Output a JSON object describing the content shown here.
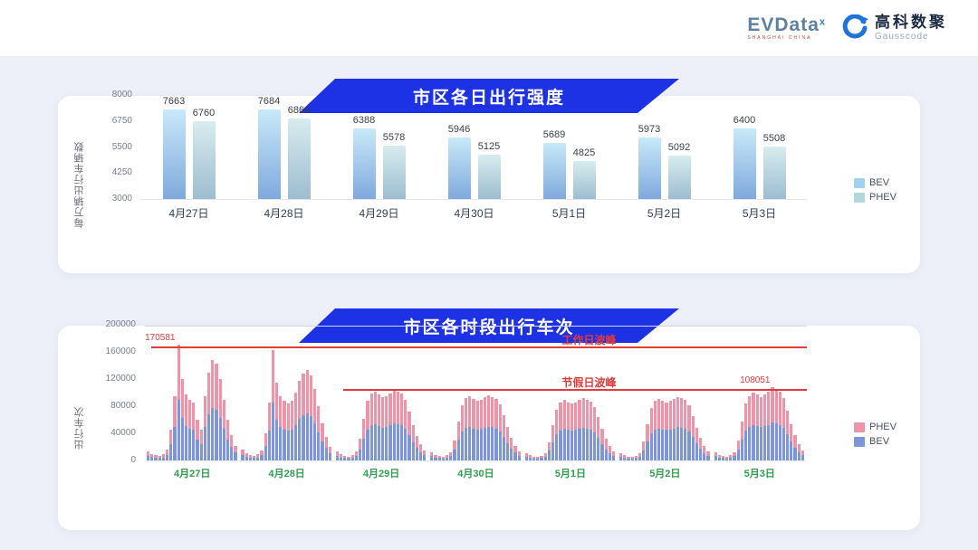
{
  "header": {
    "evdata": {
      "name": "EVData",
      "sup": "x",
      "subtext": "SHANGHAI CHINA"
    },
    "gausscode": {
      "cn": "高科数聚",
      "en": "Gausscode"
    }
  },
  "theme": {
    "ribbon_blue": "#1d32e4",
    "background": "#edf0f8",
    "annotation_red": "#e23b3b",
    "date_green": "#2f9e4e"
  },
  "chart_data": [
    {
      "type": "bar",
      "title": "市区各日出行强度",
      "ylabel": "每万辆出行车辆数",
      "ymin": 3000,
      "ymax": 8000,
      "yticks": [
        3000,
        4250,
        5500,
        6750,
        8000
      ],
      "categories": [
        "4月27日",
        "4月28日",
        "4月29日",
        "4月30日",
        "5月1日",
        "5月2日",
        "5月3日"
      ],
      "series": [
        {
          "name": "BEV",
          "values": [
            7663,
            7684,
            6388,
            5946,
            5689,
            5973,
            6400
          ]
        },
        {
          "name": "PHEV",
          "values": [
            6760,
            6866,
            5578,
            5125,
            4825,
            5092,
            5508
          ]
        }
      ],
      "legend": [
        {
          "label": "BEV",
          "color": "#9fd2ef"
        },
        {
          "label": "PHEV",
          "color": "#b2d8da"
        }
      ]
    },
    {
      "type": "bar",
      "subtype": "stacked-hourly",
      "title": "市区各时段出行车次",
      "ylabel": "出行车次",
      "ymin": 0,
      "ymax": 200000,
      "yticks": [
        0,
        40000,
        80000,
        120000,
        160000,
        200000
      ],
      "bev_share": 0.52,
      "colors": {
        "BEV": "#7d95d9",
        "PHEV": "#ee94a8"
      },
      "days": [
        {
          "date": "4月27日",
          "totals": [
            14000,
            10000,
            8000,
            7000,
            9000,
            16000,
            45000,
            95000,
            170581,
            120000,
            97000,
            90000,
            86000,
            60000,
            45000,
            95000,
            130000,
            148000,
            143000,
            120000,
            90000,
            60000,
            38000,
            22000
          ]
        },
        {
          "date": "4月28日",
          "totals": [
            16000,
            11000,
            8000,
            7000,
            9000,
            15000,
            40000,
            85000,
            163000,
            115000,
            95000,
            88000,
            84000,
            88000,
            100000,
            118000,
            128000,
            133000,
            126000,
            105000,
            80000,
            55000,
            35000,
            20000
          ]
        },
        {
          "date": "4月29日",
          "totals": [
            13000,
            9000,
            7000,
            6000,
            8000,
            13000,
            32000,
            62000,
            88000,
            99000,
            102000,
            97000,
            93000,
            95000,
            99000,
            104000,
            102000,
            99000,
            90000,
            72000,
            52000,
            36000,
            24000,
            15000
          ]
        },
        {
          "date": "4月30日",
          "totals": [
            12000,
            8000,
            6500,
            6000,
            7500,
            12000,
            30000,
            58000,
            82000,
            92000,
            95000,
            91000,
            88000,
            90000,
            93000,
            96000,
            94000,
            91000,
            83000,
            67000,
            49000,
            34000,
            22000,
            14000
          ]
        },
        {
          "date": "5月1日",
          "totals": [
            11000,
            8000,
            6000,
            5500,
            7000,
            11000,
            27000,
            52000,
            75000,
            85000,
            89000,
            86000,
            84000,
            86000,
            89000,
            92000,
            90000,
            87000,
            79000,
            64000,
            47000,
            32000,
            21000,
            13000
          ]
        },
        {
          "date": "5月2日",
          "totals": [
            11000,
            8000,
            6000,
            5500,
            7000,
            11000,
            28000,
            54000,
            78000,
            88000,
            91000,
            88000,
            86000,
            88000,
            91000,
            94000,
            92000,
            89000,
            81000,
            66000,
            48000,
            33000,
            21000,
            13000
          ]
        },
        {
          "date": "5月3日",
          "totals": [
            12000,
            8500,
            6500,
            6000,
            7500,
            12000,
            30000,
            58000,
            84000,
            95000,
            100000,
            97000,
            94000,
            97000,
            101000,
            108051,
            105000,
            101000,
            92000,
            74000,
            54000,
            37000,
            24000,
            15000
          ]
        }
      ],
      "annotations": {
        "workday_line": {
          "value": 170581,
          "label": "工作日波峰"
        },
        "holiday_line": {
          "value": 108051,
          "label": "节假日波峰"
        },
        "markers": [
          {
            "value": 170581,
            "day": 0,
            "hour": 8
          },
          {
            "value": 108051,
            "day": 6,
            "hour": 15
          }
        ]
      },
      "legend": [
        {
          "label": "PHEV",
          "color": "#ee94a8"
        },
        {
          "label": "BEV",
          "color": "#7d95d9"
        }
      ]
    }
  ]
}
